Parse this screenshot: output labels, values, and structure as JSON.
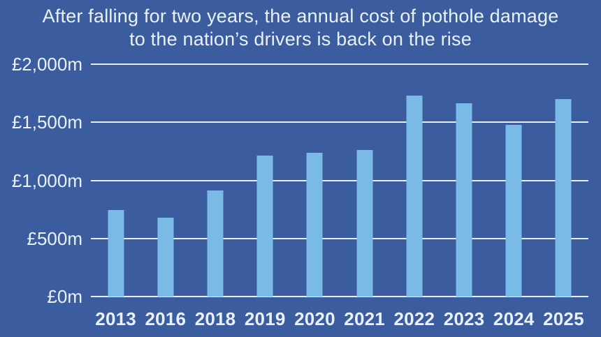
{
  "chart_data": {
    "type": "bar",
    "title": "After falling for two years, the annual cost of pothole damage to the nation’s drivers is back on the rise",
    "title_lines": [
      "After falling for two years, the annual cost of pothole damage",
      "to the nation’s drivers is back on the rise"
    ],
    "categories": [
      "2013",
      "2016",
      "2018",
      "2019",
      "2020",
      "2021",
      "2022",
      "2023",
      "2024",
      "2025"
    ],
    "values": [
      745,
      680,
      915,
      1215,
      1240,
      1260,
      1730,
      1665,
      1475,
      1700
    ],
    "unit": "£ million",
    "xlabel": "",
    "ylabel": "",
    "ylim": [
      0,
      2000
    ],
    "y_ticks": [
      {
        "value": 0,
        "label": "£0m"
      },
      {
        "value": 500,
        "label": "£500m"
      },
      {
        "value": 1000,
        "label": "£1,000m"
      },
      {
        "value": 1500,
        "label": "£1,500m"
      },
      {
        "value": 2000,
        "label": "£2,000m"
      }
    ],
    "grid": true,
    "legend_position": "none",
    "colors": {
      "background": "#3B5C9E",
      "bar": "#7ABAE6",
      "gridline": "#E9EFF7",
      "text": "#EAF1F9"
    }
  }
}
